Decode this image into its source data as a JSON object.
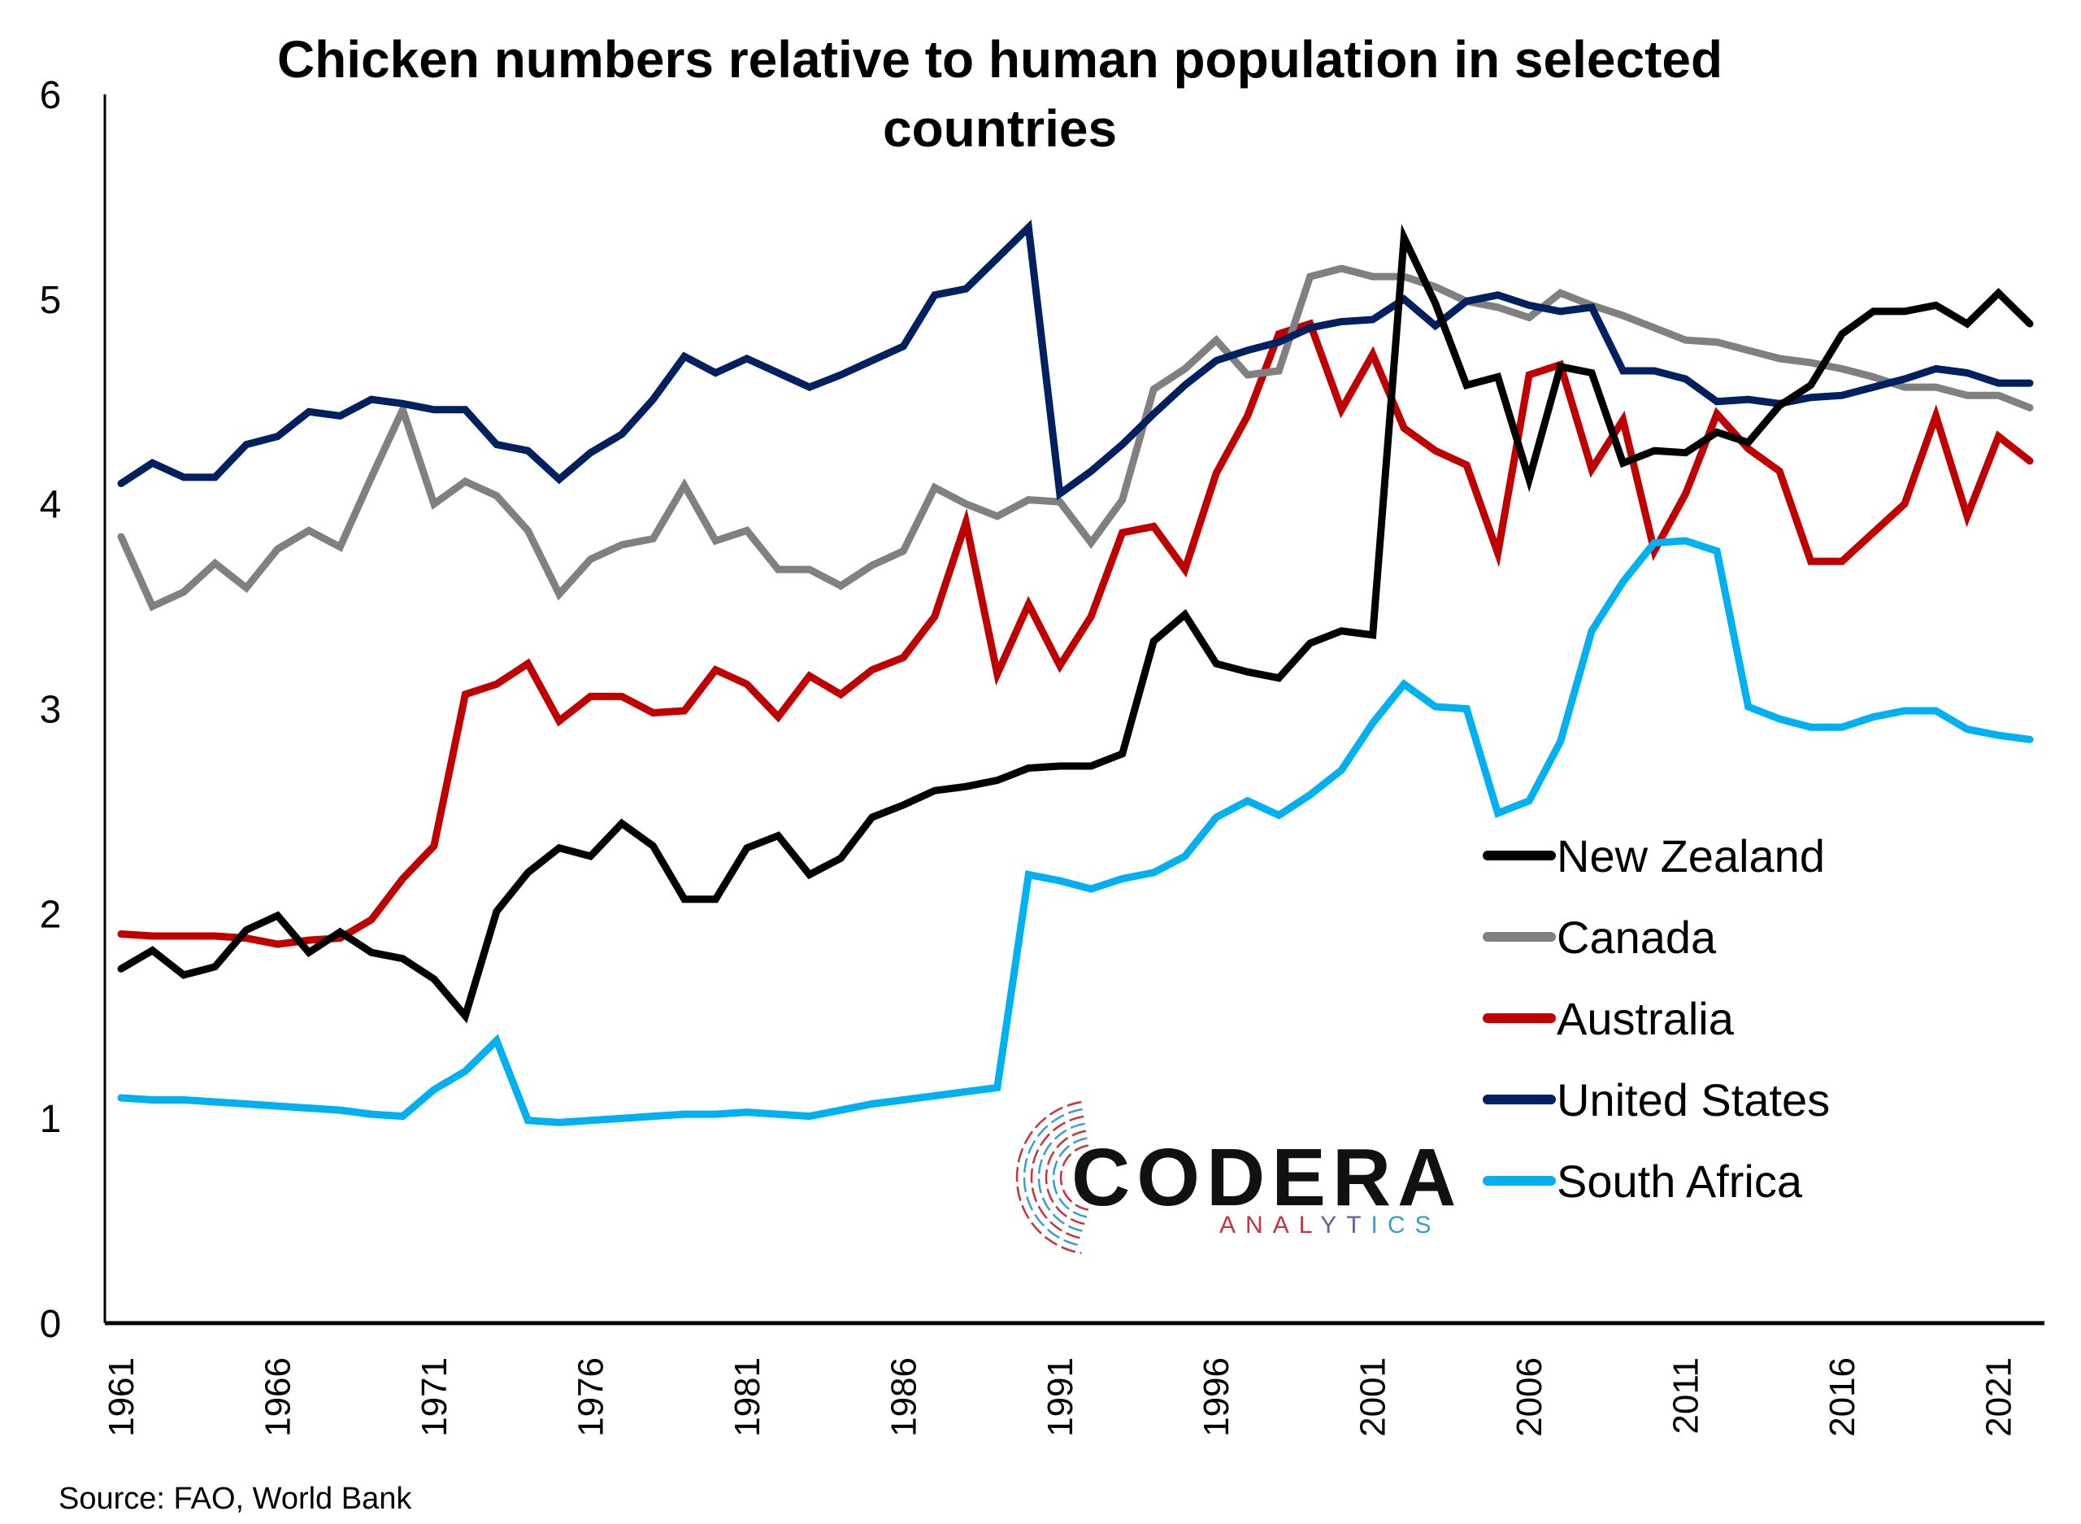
{
  "chart_data": {
    "type": "line",
    "title_lines": [
      "Chicken numbers relative to human population in selected",
      "countries"
    ],
    "xlabel": "",
    "ylabel": "",
    "ylim": [
      0,
      6
    ],
    "yticks": [
      0,
      1,
      2,
      3,
      4,
      5,
      6
    ],
    "xlim": [
      1961,
      2022
    ],
    "xtick_labels": [
      "1961",
      "1966",
      "1971",
      "1976",
      "1981",
      "1986",
      "1991",
      "1996",
      "2001",
      "2006",
      "2011",
      "2016",
      "2021"
    ],
    "grid": false,
    "legend_position": "lower-right",
    "x": [
      1961,
      1962,
      1963,
      1964,
      1965,
      1966,
      1967,
      1968,
      1969,
      1970,
      1971,
      1972,
      1973,
      1974,
      1975,
      1976,
      1977,
      1978,
      1979,
      1980,
      1981,
      1982,
      1983,
      1984,
      1985,
      1986,
      1987,
      1988,
      1989,
      1990,
      1991,
      1992,
      1993,
      1994,
      1995,
      1996,
      1997,
      1998,
      1999,
      2000,
      2001,
      2002,
      2003,
      2004,
      2005,
      2006,
      2007,
      2008,
      2009,
      2010,
      2011,
      2012,
      2013,
      2014,
      2015,
      2016,
      2017,
      2018,
      2019,
      2020,
      2021,
      2022
    ],
    "series": [
      {
        "name": "New Zealand",
        "color": "#000000",
        "values": [
          1.73,
          1.82,
          1.7,
          1.74,
          1.92,
          1.99,
          1.81,
          1.91,
          1.81,
          1.78,
          1.68,
          1.5,
          2.01,
          2.2,
          2.32,
          2.28,
          2.44,
          2.33,
          2.07,
          2.07,
          2.32,
          2.38,
          2.19,
          2.27,
          2.47,
          2.53,
          2.6,
          2.62,
          2.65,
          2.71,
          2.72,
          2.72,
          2.78,
          3.33,
          3.46,
          3.22,
          3.18,
          3.15,
          3.32,
          3.38,
          3.36,
          5.3,
          4.98,
          4.58,
          4.62,
          4.12,
          4.67,
          4.64,
          4.2,
          4.26,
          4.25,
          4.35,
          4.3,
          4.48,
          4.58,
          4.83,
          4.94,
          4.94,
          4.97,
          4.88,
          5.03,
          4.88
        ]
      },
      {
        "name": "Canada",
        "color": "#808080",
        "values": [
          3.84,
          3.5,
          3.57,
          3.71,
          3.59,
          3.78,
          3.87,
          3.79,
          4.13,
          4.46,
          4.0,
          4.11,
          4.04,
          3.87,
          3.56,
          3.73,
          3.8,
          3.83,
          4.09,
          3.82,
          3.87,
          3.68,
          3.68,
          3.6,
          3.7,
          3.77,
          4.08,
          4.0,
          3.94,
          4.02,
          4.01,
          3.81,
          4.02,
          4.56,
          4.66,
          4.8,
          4.63,
          4.65,
          5.11,
          5.15,
          5.11,
          5.11,
          5.06,
          4.99,
          4.96,
          4.91,
          5.03,
          4.97,
          4.92,
          4.86,
          4.8,
          4.79,
          4.75,
          4.71,
          4.69,
          4.66,
          4.62,
          4.57,
          4.57,
          4.53,
          4.53,
          4.47
        ]
      },
      {
        "name": "Australia",
        "color": "#C00000",
        "values": [
          1.9,
          1.89,
          1.89,
          1.89,
          1.88,
          1.85,
          1.87,
          1.88,
          1.97,
          2.17,
          2.33,
          3.07,
          3.12,
          3.22,
          2.94,
          3.06,
          3.06,
          2.98,
          2.99,
          3.19,
          3.12,
          2.96,
          3.16,
          3.07,
          3.19,
          3.25,
          3.45,
          3.91,
          3.17,
          3.51,
          3.21,
          3.45,
          3.86,
          3.89,
          3.68,
          4.15,
          4.43,
          4.83,
          4.88,
          4.46,
          4.73,
          4.37,
          4.26,
          4.19,
          3.76,
          4.63,
          4.68,
          4.17,
          4.41,
          3.77,
          4.05,
          4.44,
          4.27,
          4.16,
          3.72,
          3.72,
          3.86,
          4.0,
          4.43,
          3.94,
          4.33,
          4.21
        ]
      },
      {
        "name": "United States",
        "color": "#002060",
        "values": [
          4.1,
          4.2,
          4.13,
          4.13,
          4.29,
          4.33,
          4.45,
          4.43,
          4.51,
          4.49,
          4.46,
          4.46,
          4.29,
          4.26,
          4.12,
          4.25,
          4.34,
          4.51,
          4.72,
          4.64,
          4.71,
          4.64,
          4.57,
          4.63,
          4.7,
          4.77,
          5.02,
          5.05,
          5.2,
          5.35,
          4.05,
          4.16,
          4.29,
          4.44,
          4.58,
          4.7,
          4.75,
          4.79,
          4.86,
          4.89,
          4.9,
          5.0,
          4.87,
          4.99,
          5.02,
          4.97,
          4.94,
          4.96,
          4.65,
          4.65,
          4.61,
          4.5,
          4.51,
          4.49,
          4.52,
          4.53,
          4.57,
          4.61,
          4.66,
          4.64,
          4.59,
          4.59
        ]
      },
      {
        "name": "South Africa",
        "color": "#00B0F0",
        "values": [
          1.1,
          1.09,
          1.09,
          1.08,
          1.07,
          1.06,
          1.05,
          1.04,
          1.02,
          1.01,
          1.14,
          1.23,
          1.38,
          0.99,
          0.98,
          0.99,
          1.0,
          1.01,
          1.02,
          1.02,
          1.03,
          1.02,
          1.01,
          1.04,
          1.07,
          1.09,
          1.11,
          1.13,
          1.15,
          2.19,
          2.16,
          2.12,
          2.17,
          2.2,
          2.28,
          2.47,
          2.55,
          2.48,
          2.58,
          2.7,
          2.93,
          3.12,
          3.01,
          3.0,
          2.49,
          2.55,
          2.84,
          3.38,
          3.62,
          3.81,
          3.82,
          3.77,
          3.01,
          2.95,
          2.91,
          2.91,
          2.96,
          2.99,
          2.99,
          2.9,
          2.87,
          2.85
        ]
      }
    ]
  },
  "source_text": "Source: FAO, World Bank",
  "logo": {
    "name": "CODERA",
    "subtitle": "ANALYTICS",
    "colors": {
      "red": "#C8323C",
      "blue": "#3C9BD2"
    }
  }
}
